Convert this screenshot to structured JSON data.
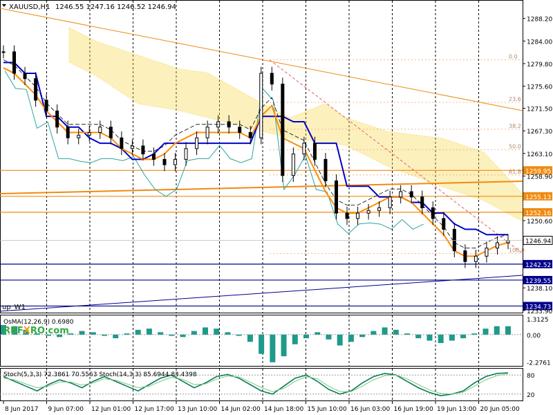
{
  "header": {
    "symbol": "XAUUSD,H1",
    "ohlc": "1246.55 1247.16 1246.52 1246.94",
    "trend_label": "up_W1"
  },
  "watermark": {
    "part1": "RBF",
    "part2": "X",
    "part3": "RO.com"
  },
  "colors": {
    "candle": "#000000",
    "kijun": "#0000c8",
    "tenkan": "#ff8c00",
    "chikou": "#2aa3a3",
    "cloud": "#f5d442",
    "level": "#f08a10",
    "support": "#00008b",
    "osma": "#1f9a8a",
    "stoch_main": "#0a7a5a",
    "stoch_signal": "#7cc87c",
    "fib": "#e06060"
  },
  "chart_data": [
    {
      "type": "line",
      "panel": "price",
      "symbol": "XAUUSD",
      "timeframe": "H1",
      "ylim": [
        1233.5,
        1291.5
      ],
      "y_ticks": [
        1288.2,
        1284.0,
        1279.8,
        1275.6,
        1271.5,
        1267.3,
        1263.1,
        1258.9,
        1250.6,
        1238.1,
        1233.9
      ],
      "x_ticks": [
        "8 Jun 2017",
        "9 Jun 07:00",
        "12 Jun 01:00",
        "12 Jun 17:00",
        "13 Jun 10:00",
        "14 Jun 02:00",
        "14 Jun 18:00",
        "15 Jun 10:00",
        "16 Jun 03:00",
        "16 Jun 19:00",
        "19 Jun 13:00",
        "20 Jun 05:00"
      ],
      "current_price": 1246.94,
      "horizontal_levels": [
        {
          "value": 1259.95,
          "label": "1259.95"
        },
        {
          "value": 1255.13,
          "label": "1255.13"
        },
        {
          "value": 1252.16,
          "label": "1252.16"
        },
        {
          "value": 1242.52,
          "label": "1242.52"
        },
        {
          "value": 1239.55,
          "label": "1239.55"
        },
        {
          "value": 1234.73,
          "label": "1234.73"
        }
      ],
      "fibonacci": [
        {
          "label": "0.0",
          "value": 1280.5
        },
        {
          "label": "23.6",
          "value": 1272.6
        },
        {
          "label": "38.2",
          "value": 1267.6
        },
        {
          "label": "50.0",
          "value": 1263.8
        },
        {
          "label": "61.8",
          "value": 1259.1
        },
        {
          "label": "100.0",
          "value": 1244.5
        }
      ],
      "series": [
        {
          "kind": "close",
          "values": [
            1282,
            1278,
            1277,
            1273,
            1271,
            1268,
            1266,
            1266.5,
            1267,
            1268,
            1266,
            1264,
            1264.5,
            1263,
            1262,
            1261,
            1262,
            1264,
            1266,
            1268,
            1269,
            1268,
            1267,
            1266,
            1278,
            1276,
            1259,
            1263,
            1265,
            1262,
            1258,
            1252,
            1251,
            1252,
            1252.5,
            1253,
            1255,
            1256,
            1255,
            1253,
            1251,
            1249,
            1245,
            1243,
            1244,
            1245.5,
            1246.5,
            1246.9
          ]
        },
        {
          "kind": "kijun",
          "values": [
            1280,
            1280,
            1278,
            1278,
            1270,
            1270,
            1268,
            1268,
            1266,
            1265,
            1265,
            1264,
            1262,
            1262,
            1263,
            1265,
            1265,
            1265,
            1265,
            1265,
            1265,
            1265,
            1265,
            1265,
            1270,
            1270,
            1270,
            1269,
            1269,
            1265,
            1265,
            1265,
            1257,
            1257,
            1257,
            1255,
            1255,
            1255,
            1254,
            1254,
            1252,
            1252,
            1250,
            1249,
            1249,
            1248,
            1248,
            1248
          ]
        },
        {
          "kind": "tenkan",
          "values": [
            1279,
            1278,
            1276,
            1274,
            1271,
            1269,
            1267,
            1267,
            1267,
            1267,
            1266,
            1264,
            1263,
            1262,
            1262,
            1263,
            1265,
            1266,
            1267,
            1267,
            1267,
            1267,
            1267,
            1266,
            1270,
            1272,
            1266,
            1265,
            1264,
            1260,
            1256,
            1253,
            1252,
            1252,
            1253,
            1254,
            1255,
            1255,
            1254,
            1252,
            1250,
            1248,
            1245,
            1244,
            1244,
            1245,
            1246,
            1246.5
          ]
        }
      ]
    },
    {
      "type": "bar",
      "panel": "osma",
      "label": "OsMA(12,26,9) 0.6980",
      "ylim": [
        -2.6,
        1.6
      ],
      "y_ticks": [
        1.3125,
        0.0,
        -2.2761
      ],
      "values": [
        0.8,
        0.7,
        0.4,
        0.1,
        -0.1,
        -0.2,
        0.1,
        0.3,
        0.2,
        -0.1,
        -0.3,
        0.1,
        0.4,
        0.5,
        0.2,
        -0.1,
        -0.2,
        0.3,
        0.6,
        0.5,
        0.2,
        -0.1,
        -0.6,
        -1.6,
        -2.3,
        -1.8,
        -0.8,
        -0.3,
        0.2,
        -0.4,
        -0.9,
        -0.6,
        -0.2,
        0.3,
        0.6,
        0.4,
        0.1,
        -0.3,
        -0.5,
        -0.7,
        -0.5,
        -0.3,
        0.1,
        0.5,
        0.7,
        0.7
      ]
    },
    {
      "type": "line",
      "panel": "stochastic",
      "label": "Stoch(5,3,3) 72.3861 70.5563 Stoch(14,3,3) 85.6944 83.4398",
      "ylim": [
        0,
        100
      ],
      "y_ticks": [
        80,
        20
      ],
      "series": [
        {
          "kind": "stoch-main",
          "values": [
            75,
            60,
            45,
            30,
            50,
            65,
            55,
            40,
            60,
            75,
            60,
            45,
            30,
            50,
            70,
            80,
            60,
            40,
            55,
            75,
            82,
            70,
            50,
            30,
            20,
            45,
            70,
            80,
            60,
            35,
            20,
            30,
            55,
            75,
            85,
            80,
            60,
            40,
            25,
            15,
            20,
            30,
            55,
            75,
            85,
            87
          ]
        },
        {
          "kind": "stoch-signal",
          "values": [
            70,
            65,
            52,
            40,
            45,
            58,
            58,
            48,
            55,
            68,
            64,
            52,
            40,
            45,
            60,
            73,
            66,
            50,
            52,
            67,
            77,
            74,
            58,
            40,
            28,
            38,
            60,
            75,
            68,
            45,
            28,
            28,
            45,
            65,
            78,
            80,
            68,
            50,
            33,
            22,
            20,
            26,
            45,
            65,
            78,
            84
          ]
        }
      ]
    }
  ]
}
